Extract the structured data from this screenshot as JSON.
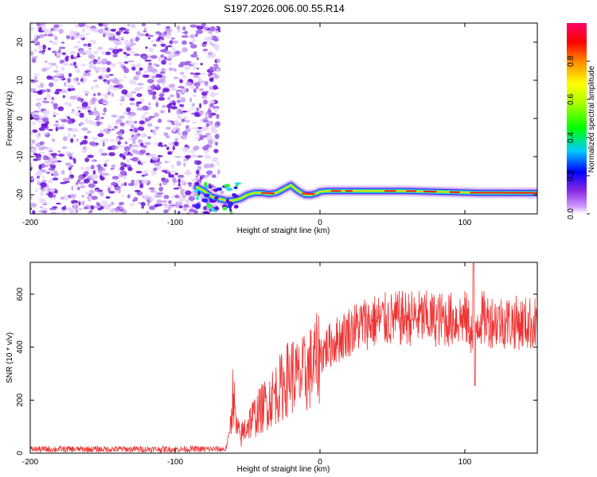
{
  "title": "S197.2026.006.00.55.R14",
  "colors": {
    "snr_line": "#ee3333",
    "noise": "#8a2be2",
    "axis": "#000000"
  },
  "chart_data": [
    {
      "type": "heatmap",
      "name": "spectrogram",
      "xlabel": "Height of straight line (km)",
      "ylabel": "Frequency (Hz)",
      "xlim": [
        -200,
        150
      ],
      "ylim": [
        -25,
        25
      ],
      "xticks": [
        -200,
        -100,
        0,
        100
      ],
      "xtick_labels": [
        "-200",
        "-100",
        "0",
        "100"
      ],
      "yticks": [
        -20,
        -10,
        0,
        10,
        20
      ],
      "ytick_labels": [
        "-20",
        "-10",
        "0",
        "10",
        "20"
      ],
      "colorbar": {
        "label": "Normalized spectral amplitude",
        "range": [
          0,
          1
        ],
        "ticks": [
          0.0,
          0.2,
          0.4,
          0.6,
          0.8
        ],
        "tick_labels": [
          "0.0",
          "0.2",
          "0.4",
          "0.6",
          "0.8"
        ]
      },
      "noise_region": {
        "x_range": [
          -200,
          -70
        ],
        "freq_range": [
          -25,
          25
        ]
      },
      "ridge": [
        [
          -85,
          -18
        ],
        [
          -80,
          -19
        ],
        [
          -75,
          -20.5
        ],
        [
          -70,
          -21
        ],
        [
          -65,
          -21.5
        ],
        [
          -60,
          -21.5
        ],
        [
          -55,
          -21
        ],
        [
          -50,
          -20
        ],
        [
          -45,
          -19.5
        ],
        [
          -40,
          -19.5
        ],
        [
          -35,
          -19.8
        ],
        [
          -30,
          -19.5
        ],
        [
          -25,
          -18.5
        ],
        [
          -20,
          -17.5
        ],
        [
          -17,
          -18.5
        ],
        [
          -13,
          -19.5
        ],
        [
          -10,
          -20
        ],
        [
          -6,
          -20
        ],
        [
          -2,
          -19.6
        ],
        [
          0,
          -19.2
        ],
        [
          5,
          -19
        ],
        [
          10,
          -19
        ],
        [
          20,
          -19
        ],
        [
          30,
          -19
        ],
        [
          40,
          -19
        ],
        [
          50,
          -19
        ],
        [
          60,
          -19
        ],
        [
          70,
          -19.1
        ],
        [
          80,
          -19.2
        ],
        [
          90,
          -19.3
        ],
        [
          100,
          -19.4
        ],
        [
          110,
          -19.5
        ],
        [
          120,
          -19.5
        ],
        [
          130,
          -19.5
        ],
        [
          140,
          -19.5
        ],
        [
          150,
          -19.5
        ]
      ]
    },
    {
      "type": "line",
      "name": "snr",
      "xlabel": "Height of straight line (km)",
      "ylabel": "SNR (10 * v/v)",
      "xlim": [
        -200,
        150
      ],
      "ylim": [
        0,
        720
      ],
      "xticks": [
        -200,
        -100,
        0,
        100
      ],
      "xtick_labels": [
        "-200",
        "-100",
        "0",
        "100"
      ],
      "yticks": [
        0,
        200,
        400,
        600
      ],
      "ytick_labels": [
        "0",
        "200",
        "400",
        "600"
      ],
      "series": [
        {
          "name": "SNR",
          "envelope_x": [
            -200,
            -100,
            -65,
            -62,
            -60,
            -58,
            -55,
            -50,
            -45,
            -40,
            -35,
            -30,
            -25,
            -20,
            -15,
            -10,
            -5,
            0,
            5,
            10,
            15,
            20,
            30,
            40,
            50,
            60,
            70,
            80,
            90,
            100,
            104,
            106,
            108,
            110,
            120,
            130,
            140,
            150
          ],
          "envelope_y": [
            15,
            15,
            15,
            90,
            240,
            100,
            60,
            110,
            140,
            170,
            200,
            230,
            260,
            300,
            280,
            300,
            330,
            370,
            400,
            420,
            440,
            460,
            490,
            500,
            505,
            510,
            510,
            505,
            505,
            510,
            480,
            380,
            500,
            510,
            500,
            495,
            490,
            490
          ]
        }
      ]
    }
  ]
}
